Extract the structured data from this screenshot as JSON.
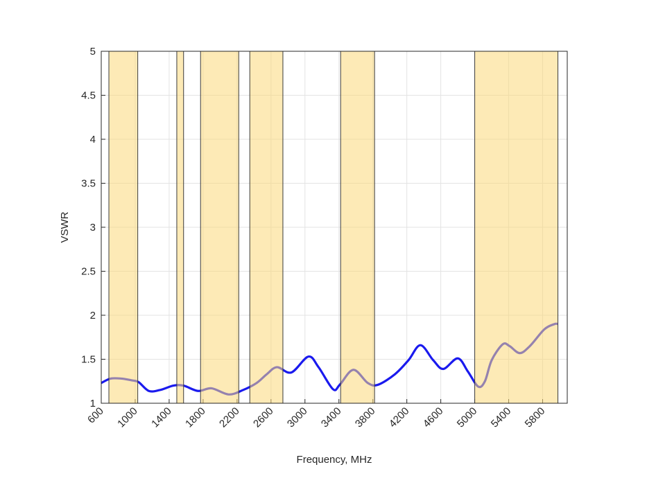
{
  "chart_data": {
    "type": "line",
    "x_label": "Frequency, MHz",
    "y_label": "VSWR",
    "xlim": [
      600,
      6090
    ],
    "ylim": [
      1,
      5
    ],
    "xticks": [
      600,
      1000,
      1400,
      1800,
      2200,
      2600,
      3000,
      3400,
      3800,
      4200,
      4600,
      5000,
      5400,
      5800
    ],
    "yticks": [
      1,
      1.5,
      2,
      2.5,
      3,
      3.5,
      4,
      4.5,
      5
    ],
    "grid": true,
    "band_color": "#fcd87a",
    "highlight_bands": [
      [
        690,
        1030
      ],
      [
        1490,
        1570
      ],
      [
        1770,
        2220
      ],
      [
        2350,
        2740
      ],
      [
        3420,
        3820
      ],
      [
        5000,
        5980
      ]
    ],
    "x": [
      600,
      710,
      840,
      960,
      1040,
      1160,
      1290,
      1450,
      1570,
      1740,
      1900,
      2100,
      2270,
      2430,
      2550,
      2670,
      2840,
      3040,
      3160,
      3330,
      3410,
      3570,
      3740,
      3860,
      4060,
      4220,
      4360,
      4510,
      4630,
      4800,
      4920,
      5040,
      5120,
      5200,
      5330,
      5410,
      5530,
      5650,
      5820,
      5940,
      5980
    ],
    "series": [
      {
        "name": "VSWR",
        "color": "#1a1aee",
        "values": [
          1.23,
          1.28,
          1.28,
          1.26,
          1.24,
          1.14,
          1.15,
          1.2,
          1.2,
          1.14,
          1.17,
          1.1,
          1.15,
          1.23,
          1.33,
          1.41,
          1.35,
          1.53,
          1.41,
          1.16,
          1.21,
          1.38,
          1.23,
          1.21,
          1.33,
          1.49,
          1.66,
          1.49,
          1.39,
          1.51,
          1.36,
          1.19,
          1.25,
          1.49,
          1.67,
          1.65,
          1.57,
          1.65,
          1.84,
          1.9,
          1.9
        ]
      }
    ]
  }
}
